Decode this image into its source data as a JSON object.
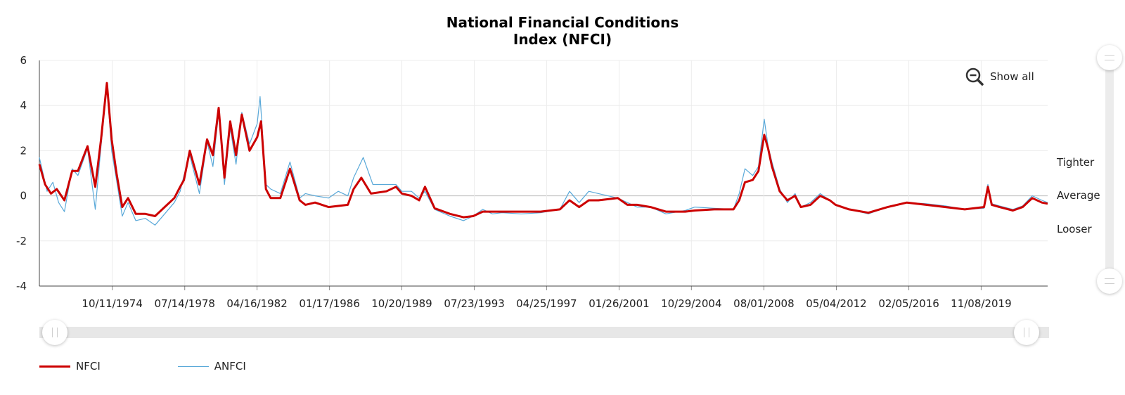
{
  "chart_data": {
    "type": "line",
    "title": "National Financial Conditions Index (NFCI)",
    "title_lines": [
      "National Financial Conditions",
      "Index (NFCI)"
    ],
    "ylim": [
      -4,
      6
    ],
    "yticks": [
      6,
      4,
      2,
      0,
      -2,
      -4
    ],
    "yticklabels": [
      "6",
      "4",
      "2",
      "0",
      "-2",
      "-4"
    ],
    "xlim": [
      1971.0,
      2023.3
    ],
    "xticks": [
      1974.78,
      1978.54,
      1982.29,
      1986.05,
      1989.8,
      1993.56,
      1997.31,
      2001.07,
      2004.82,
      2008.58,
      2012.34,
      2016.1,
      2019.85
    ],
    "xticklabels": [
      "10/11/1974",
      "07/14/1978",
      "04/16/1982",
      "01/17/1986",
      "10/20/1989",
      "07/23/1993",
      "04/25/1997",
      "01/26/2001",
      "10/29/2004",
      "08/01/2008",
      "05/04/2012",
      "02/05/2016",
      "11/08/2019"
    ],
    "grid": true,
    "band_labels": [
      "Tighter",
      "Average",
      "Looser"
    ],
    "series": [
      {
        "name": "NFCI",
        "color": "#cc0000",
        "x": [
          1971.0,
          1971.3,
          1971.6,
          1971.9,
          1972.3,
          1972.7,
          1973.0,
          1973.5,
          1973.9,
          1974.2,
          1974.5,
          1974.75,
          1975.0,
          1975.3,
          1975.6,
          1976.0,
          1976.5,
          1977.0,
          1977.5,
          1978.0,
          1978.3,
          1978.5,
          1978.8,
          1979.3,
          1979.7,
          1980.0,
          1980.3,
          1980.6,
          1980.9,
          1981.2,
          1981.5,
          1981.9,
          1982.3,
          1982.5,
          1982.75,
          1983.0,
          1983.5,
          1984.0,
          1984.5,
          1984.8,
          1985.3,
          1986.0,
          1986.5,
          1987.0,
          1987.3,
          1987.7,
          1988.2,
          1989.0,
          1989.5,
          1989.8,
          1990.3,
          1990.7,
          1991.0,
          1991.5,
          1992.3,
          1993.0,
          1993.5,
          1994.0,
          1994.5,
          1995.0,
          1996.0,
          1997.0,
          1998.0,
          1998.5,
          1999.0,
          1999.5,
          2000.0,
          2001.0,
          2001.5,
          2002.0,
          2002.7,
          2003.5,
          2004.5,
          2005.0,
          2006.0,
          2007.0,
          2007.3,
          2007.6,
          2008.0,
          2008.3,
          2008.6,
          2008.8,
          2009.0,
          2009.4,
          2009.8,
          2010.2,
          2010.5,
          2011.0,
          2011.5,
          2012.0,
          2012.3,
          2013.0,
          2014.0,
          2015.0,
          2016.0,
          2017.0,
          2018.0,
          2019.0,
          2020.0,
          2020.2,
          2020.4,
          2020.8,
          2021.5,
          2022.0,
          2022.5,
          2023.0,
          2023.3
        ],
        "y": [
          1.4,
          0.5,
          0.1,
          0.3,
          -0.2,
          1.1,
          1.1,
          2.2,
          0.4,
          2.5,
          5.0,
          2.5,
          1.0,
          -0.5,
          -0.1,
          -0.8,
          -0.8,
          -0.9,
          -0.5,
          -0.1,
          0.4,
          0.7,
          2.0,
          0.5,
          2.5,
          1.8,
          3.9,
          0.8,
          3.3,
          1.8,
          3.6,
          2.0,
          2.6,
          3.3,
          0.3,
          -0.1,
          -0.1,
          1.2,
          -0.2,
          -0.4,
          -0.3,
          -0.5,
          -0.45,
          -0.4,
          0.3,
          0.8,
          0.1,
          0.2,
          0.4,
          0.1,
          0.0,
          -0.2,
          0.4,
          -0.55,
          -0.8,
          -0.95,
          -0.9,
          -0.7,
          -0.7,
          -0.7,
          -0.7,
          -0.7,
          -0.6,
          -0.2,
          -0.5,
          -0.2,
          -0.2,
          -0.1,
          -0.4,
          -0.4,
          -0.5,
          -0.7,
          -0.7,
          -0.65,
          -0.6,
          -0.6,
          -0.2,
          0.6,
          0.7,
          1.1,
          2.7,
          2.1,
          1.3,
          0.2,
          -0.2,
          0.0,
          -0.5,
          -0.4,
          0.0,
          -0.2,
          -0.4,
          -0.6,
          -0.75,
          -0.5,
          -0.3,
          -0.4,
          -0.5,
          -0.6,
          -0.5,
          0.4,
          -0.4,
          -0.5,
          -0.65,
          -0.5,
          -0.1,
          -0.3,
          -0.35
        ]
      },
      {
        "name": "ANFCI",
        "color": "#5aa9d9",
        "x": [
          1971.0,
          1971.4,
          1971.7,
          1972.0,
          1972.3,
          1972.7,
          1973.0,
          1973.5,
          1973.9,
          1974.2,
          1974.5,
          1974.75,
          1975.0,
          1975.3,
          1975.6,
          1976.0,
          1976.5,
          1977.0,
          1977.5,
          1978.0,
          1978.3,
          1978.5,
          1978.8,
          1979.3,
          1979.7,
          1980.0,
          1980.3,
          1980.6,
          1980.9,
          1981.2,
          1981.5,
          1981.9,
          1982.3,
          1982.45,
          1982.75,
          1983.0,
          1983.5,
          1984.0,
          1984.5,
          1984.8,
          1985.3,
          1986.0,
          1986.5,
          1987.0,
          1987.3,
          1987.8,
          1988.3,
          1989.0,
          1989.5,
          1989.8,
          1990.3,
          1990.7,
          1991.0,
          1991.5,
          1992.3,
          1993.0,
          1993.5,
          1994.0,
          1994.5,
          1995.0,
          1996.0,
          1997.0,
          1998.0,
          1998.5,
          1999.0,
          1999.5,
          2000.0,
          2001.0,
          2001.5,
          2002.0,
          2002.7,
          2003.5,
          2004.5,
          2005.0,
          2006.0,
          2007.0,
          2007.3,
          2007.6,
          2008.0,
          2008.3,
          2008.6,
          2008.8,
          2009.0,
          2009.4,
          2009.8,
          2010.2,
          2010.5,
          2011.0,
          2011.5,
          2012.0,
          2012.3,
          2013.0,
          2014.0,
          2015.0,
          2016.0,
          2017.0,
          2018.0,
          2019.0,
          2020.0,
          2020.2,
          2020.4,
          2020.8,
          2021.5,
          2022.0,
          2022.5,
          2023.0,
          2023.3
        ],
        "y": [
          1.7,
          0.2,
          0.6,
          -0.3,
          -0.7,
          1.2,
          0.9,
          2.1,
          -0.6,
          2.2,
          4.9,
          2.0,
          0.7,
          -0.9,
          -0.3,
          -1.1,
          -1.0,
          -1.3,
          -0.8,
          -0.3,
          0.2,
          0.9,
          1.8,
          0.1,
          2.4,
          1.3,
          3.7,
          0.5,
          3.0,
          1.4,
          3.7,
          2.3,
          3.2,
          4.4,
          0.5,
          0.3,
          0.1,
          1.5,
          -0.1,
          0.1,
          0.0,
          -0.1,
          0.2,
          0.0,
          0.8,
          1.7,
          0.5,
          0.5,
          0.5,
          0.2,
          0.2,
          -0.1,
          0.2,
          -0.6,
          -0.9,
          -1.1,
          -0.9,
          -0.6,
          -0.8,
          -0.75,
          -0.8,
          -0.75,
          -0.6,
          0.2,
          -0.3,
          0.2,
          0.1,
          -0.1,
          -0.3,
          -0.5,
          -0.5,
          -0.8,
          -0.65,
          -0.5,
          -0.55,
          -0.6,
          0.1,
          1.2,
          0.9,
          1.3,
          3.4,
          2.2,
          1.5,
          0.3,
          -0.3,
          0.1,
          -0.5,
          -0.3,
          0.1,
          -0.2,
          -0.4,
          -0.6,
          -0.8,
          -0.5,
          -0.3,
          -0.35,
          -0.45,
          -0.6,
          -0.55,
          0.5,
          -0.35,
          -0.45,
          -0.6,
          -0.45,
          0.0,
          -0.2,
          -0.3
        ]
      }
    ]
  },
  "controls": {
    "show_all_label": "Show all"
  },
  "legend": {
    "items": [
      "NFCI",
      "ANFCI"
    ]
  }
}
